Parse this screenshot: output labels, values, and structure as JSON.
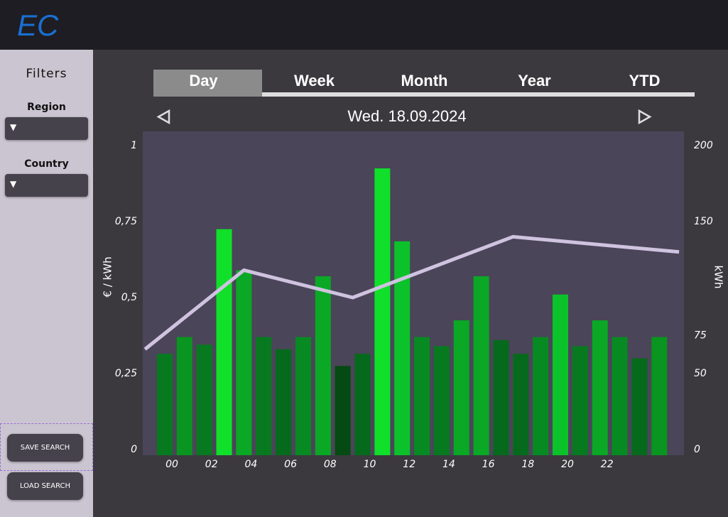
{
  "header": {
    "logo": "EC"
  },
  "sidebar": {
    "title": "Filters",
    "filters": [
      {
        "label": "Region"
      },
      {
        "label": "Country"
      }
    ],
    "buttons": [
      "SAVE SEARCH",
      "LOAD SEARCH"
    ]
  },
  "tabs": [
    "Day",
    "Week",
    "Month",
    "Year",
    "YTD"
  ],
  "date": "Wed. 18.09.2024",
  "chart_data": {
    "type": "combo",
    "ylabel": "€ / kWh",
    "y2label": "kWh",
    "categories": [
      "00",
      null,
      "02",
      null,
      "04",
      null,
      "06",
      null,
      "08",
      null,
      "10",
      null,
      "12",
      null,
      "14",
      null,
      "16",
      null,
      "18",
      null,
      "20",
      null,
      "22",
      null,
      null,
      null
    ],
    "ylim": [
      0,
      1
    ],
    "yticks": [
      0,
      {
        "value": 0.25,
        "label": "0,25"
      },
      {
        "value": 0.5,
        "label": "0,5"
      },
      {
        "value": 0.75,
        "label": "0,75"
      },
      1
    ],
    "y2lim": [
      0,
      200
    ],
    "y2ticks": [
      0,
      50,
      75,
      150,
      200
    ],
    "series": [
      {
        "type": "bar",
        "axis": "y2",
        "colors": [
          "#077a20",
          "#09951f",
          "#077a20",
          "#10e02a",
          "#0aa825",
          "#077a20",
          "#066a1c",
          "#088a22",
          "#0aa825",
          "#044a12",
          "#066a1c",
          "#10e02a",
          "#0bc22a",
          "#088a22",
          "#077a20",
          "#0aa825",
          "#0aa825",
          "#066a1c",
          "#066a1c",
          "#088a22",
          "#0bc22a",
          "#077a20",
          "#0aa825",
          "#088a22",
          "#066a1c",
          "#09951f"
        ],
        "values": [
          63,
          74,
          69,
          145,
          118,
          74,
          66,
          74,
          114,
          55,
          63,
          185,
          137,
          74,
          68,
          85,
          114,
          72,
          63,
          74,
          102,
          68,
          85,
          74,
          60,
          74
        ]
      },
      {
        "type": "line",
        "color": "#cfc3e0",
        "x": [
          -1,
          4,
          9.5,
          17.6,
          26
        ],
        "values": [
          0.33,
          0.59,
          0.5,
          0.7,
          0.65
        ]
      }
    ]
  }
}
